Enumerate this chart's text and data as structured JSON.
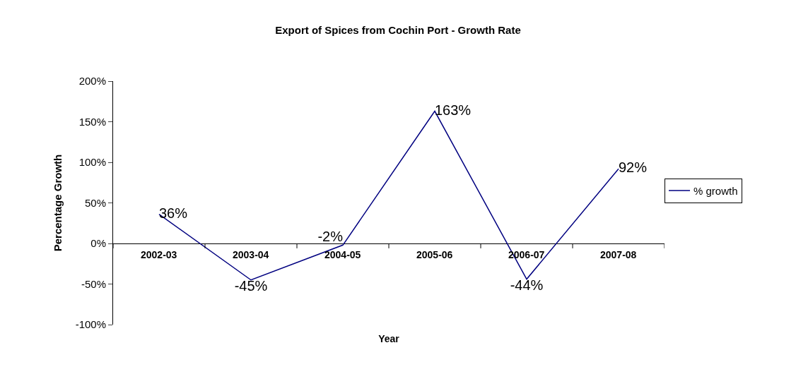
{
  "chart_data": {
    "type": "line",
    "title": "Export of Spices from Cochin Port - Growth Rate",
    "xlabel": "Year",
    "ylabel": "Percentage Growth",
    "categories": [
      "2002-03",
      "2003-04",
      "2004-05",
      "2005-06",
      "2006-07",
      "2007-08"
    ],
    "series": [
      {
        "name": "% growth",
        "color": "#000080",
        "values": [
          36,
          -45,
          -2,
          163,
          -44,
          92
        ],
        "value_labels": [
          "36%",
          "-45%",
          "-2%",
          "163%",
          "-44%",
          "92%"
        ]
      }
    ],
    "ylim": [
      -100,
      200
    ],
    "yticks": [
      {
        "value": -100,
        "label": "-100%"
      },
      {
        "value": -50,
        "label": "-50%"
      },
      {
        "value": 0,
        "label": "0%"
      },
      {
        "value": 50,
        "label": "50%"
      },
      {
        "value": 100,
        "label": "100%"
      },
      {
        "value": 150,
        "label": "150%"
      },
      {
        "value": 200,
        "label": "200%"
      }
    ],
    "grid": false,
    "legend": "right"
  }
}
